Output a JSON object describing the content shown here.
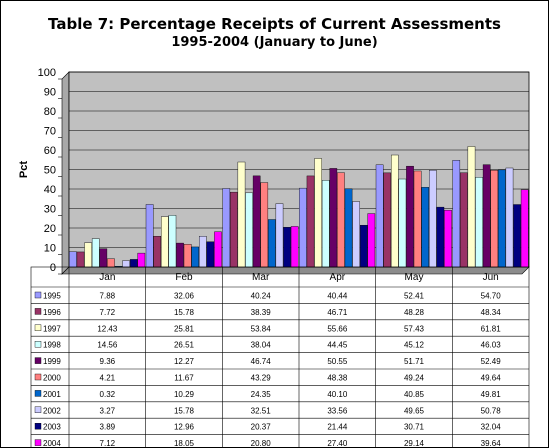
{
  "chart_data": {
    "type": "bar",
    "title_line1": "Table 7: Percentage Receipts of Current Assessments",
    "title_line2": "1995-2004 (January to June)",
    "ylabel": "Pct",
    "xlabel": "",
    "ylim": [
      0,
      100
    ],
    "yticks": [
      0,
      10,
      20,
      30,
      40,
      50,
      60,
      70,
      80,
      90,
      100
    ],
    "grid": true,
    "legend": "data-table-below",
    "plot_background": "#c0c0c0",
    "categories": [
      "Jan",
      "Feb",
      "Mar",
      "Apr",
      "May",
      "Jun"
    ],
    "series": [
      {
        "name": "1995",
        "color": "#9999ff",
        "labels": [
          "7.88",
          "32.06",
          "40.24",
          "40.44",
          "52.41",
          "54.70"
        ],
        "values": [
          7.88,
          32.06,
          40.24,
          40.44,
          52.41,
          54.7
        ]
      },
      {
        "name": "1996",
        "color": "#993366",
        "labels": [
          "7.72",
          "15.78",
          "38.39",
          "46.71",
          "48.28",
          "48.34"
        ],
        "values": [
          7.72,
          15.78,
          38.39,
          46.71,
          48.28,
          48.34
        ]
      },
      {
        "name": "1997",
        "color": "#ffffcc",
        "labels": [
          "12.43",
          "25.81",
          "53.84",
          "55.66",
          "57.43",
          "61.81"
        ],
        "values": [
          12.43,
          25.81,
          53.84,
          55.66,
          57.43,
          61.81
        ]
      },
      {
        "name": "1998",
        "color": "#ccffff",
        "labels": [
          "14.56",
          "26.51",
          "38.04",
          "44.45",
          "45.12",
          "46.03"
        ],
        "values": [
          14.56,
          26.51,
          38.04,
          44.45,
          45.12,
          46.03
        ]
      },
      {
        "name": "1999",
        "color": "#660066",
        "labels": [
          "9.36",
          "12.27",
          "46.74",
          "50.55",
          "51.71",
          "52.49"
        ],
        "values": [
          9.36,
          12.27,
          46.74,
          50.55,
          51.71,
          52.49
        ]
      },
      {
        "name": "2000",
        "color": "#ff8080",
        "labels": [
          "4.21",
          "11.67",
          "43.29",
          "48.38",
          "49.24",
          "49.64"
        ],
        "values": [
          4.21,
          11.67,
          43.29,
          48.38,
          49.24,
          49.64
        ]
      },
      {
        "name": "2001",
        "color": "#0066cc",
        "labels": [
          "0.32",
          "10.29",
          "24.35",
          "40.10",
          "40.85",
          "49.81"
        ],
        "values": [
          0.32,
          10.29,
          24.35,
          40.1,
          40.85,
          49.81
        ]
      },
      {
        "name": "2002",
        "color": "#ccccff",
        "labels": [
          "3.27",
          "15.78",
          "32.51",
          "33.56",
          "49.65",
          "50.78"
        ],
        "values": [
          3.27,
          15.78,
          32.51,
          33.56,
          49.65,
          50.78
        ]
      },
      {
        "name": "2003",
        "color": "#000080",
        "labels": [
          "3.89",
          "12.96",
          "20.37",
          "21.44",
          "30.71",
          "32.04"
        ],
        "values": [
          3.89,
          12.96,
          20.37,
          21.44,
          30.71,
          32.04
        ]
      },
      {
        "name": "2004",
        "color": "#ff00ff",
        "labels": [
          "7.12",
          "18.05",
          "20.80",
          "27.40",
          "29.14",
          "39.64"
        ],
        "values": [
          7.12,
          18.05,
          20.8,
          27.4,
          29.14,
          39.64
        ]
      }
    ]
  }
}
